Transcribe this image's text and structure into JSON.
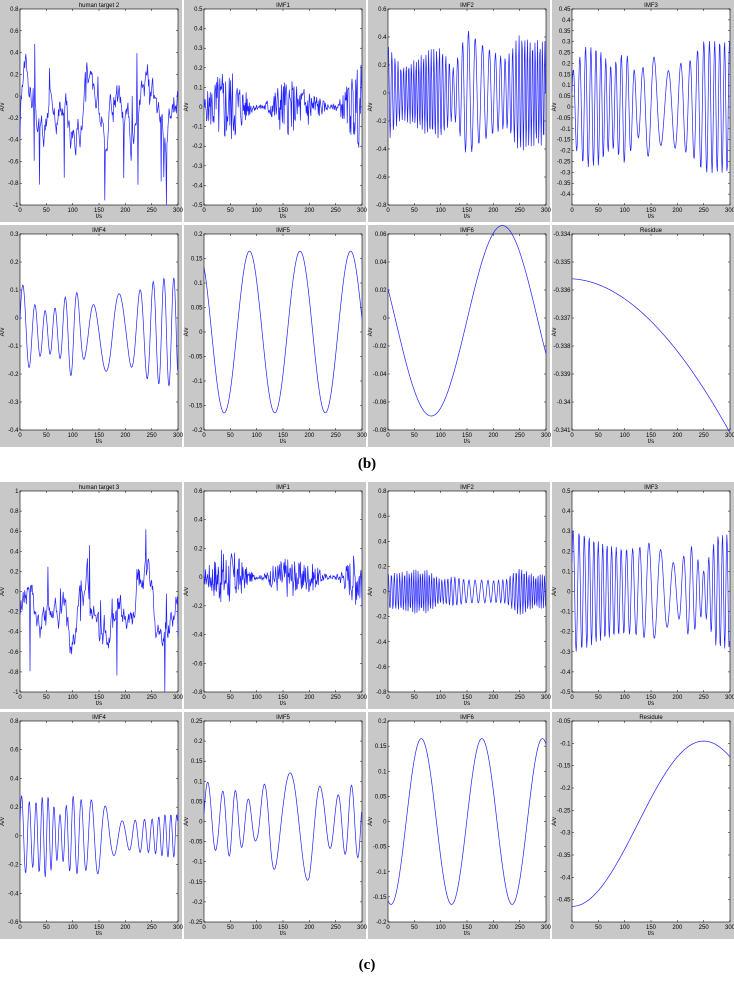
{
  "captions": [
    "(b)",
    "(c)"
  ],
  "figures": [
    {
      "name": "figure-b",
      "panels": [
        {
          "title": "human target 2",
          "ylabel": "A/v",
          "xlabel": "t/s",
          "ylim": [
            -1,
            0.8
          ],
          "yticks": [
            -1,
            -0.8,
            -0.6,
            -0.4,
            -0.2,
            0,
            0.2,
            0.4,
            0.6,
            0.8
          ],
          "yticklabels": [
            "-1",
            "-0.8",
            "-0.6",
            "-0.4",
            "-0.2",
            "0",
            "0.2",
            "0.4",
            "0.6",
            "0.8"
          ],
          "xticks": [
            0,
            50,
            100,
            150,
            200,
            250,
            300
          ],
          "kind": "sparse",
          "seed": 3,
          "amp": 0.7,
          "off": -0.15
        },
        {
          "title": "IMF1",
          "ylabel": "A/v",
          "xlabel": "t/s",
          "ylim": [
            -0.5,
            0.5
          ],
          "yticks": [
            -0.5,
            -0.4,
            -0.3,
            -0.2,
            -0.1,
            0,
            0.1,
            0.2,
            0.3,
            0.4,
            0.5
          ],
          "yticklabels": [
            "-0.5",
            "-0.4",
            "-0.3",
            "-0.2",
            "-0.1",
            "0",
            "0.1",
            "0.2",
            "0.3",
            "0.4",
            "0.5"
          ],
          "xticks": [
            0,
            50,
            100,
            150,
            200,
            250,
            300
          ],
          "kind": "noise",
          "seed": 5,
          "amp": 0.25,
          "off": 0
        },
        {
          "title": "IMF2",
          "ylabel": "A/v",
          "xlabel": "t/s",
          "ylim": [
            -0.8,
            0.6
          ],
          "yticks": [
            -0.8,
            -0.6,
            -0.4,
            -0.2,
            0,
            0.2,
            0.4,
            0.6
          ],
          "yticklabels": [
            "-0.8",
            "-0.6",
            "-0.4",
            "-0.2",
            "0",
            "0.2",
            "0.4",
            "0.6"
          ],
          "xticks": [
            0,
            50,
            100,
            150,
            200,
            250,
            300
          ],
          "kind": "osc",
          "seed": 7,
          "amp": 0.5,
          "freq": 0.18,
          "off": 0
        },
        {
          "title": "IMF3",
          "ylabel": "A/v",
          "xlabel": "t/s",
          "ylim": [
            -0.45,
            0.45
          ],
          "yticks": [
            -0.4,
            -0.35,
            -0.3,
            -0.25,
            -0.2,
            -0.15,
            -0.1,
            -0.05,
            0,
            0.05,
            0.1,
            0.15,
            0.2,
            0.25,
            0.3,
            0.35,
            0.4,
            0.45
          ],
          "yticklabels": [
            "-0.4",
            "-0.35",
            "-0.3",
            "-0.25",
            "-0.2",
            "-0.15",
            "-0.1",
            "-0.05",
            "0",
            "0.05",
            "0.1",
            "0.15",
            "0.2",
            "0.25",
            "0.3",
            "0.35",
            "0.4",
            "0.45"
          ],
          "xticks": [
            0,
            50,
            100,
            150,
            200,
            250,
            300
          ],
          "kind": "osc",
          "seed": 9,
          "amp": 0.35,
          "freq": 0.09,
          "off": 0
        },
        {
          "title": "IMF4",
          "ylabel": "A/v",
          "xlabel": "t/s",
          "ylim": [
            -0.4,
            0.3
          ],
          "yticks": [
            -0.4,
            -0.3,
            -0.2,
            -0.1,
            0,
            0.1,
            0.2,
            0.3
          ],
          "yticklabels": [
            "-0.4",
            "-0.3",
            "-0.2",
            "-0.1",
            "0",
            "0.1",
            "0.2",
            "0.3"
          ],
          "xticks": [
            0,
            50,
            100,
            150,
            200,
            250,
            300
          ],
          "kind": "osc",
          "seed": 11,
          "amp": 0.2,
          "freq": 0.045,
          "off": -0.05
        },
        {
          "title": "IMF5",
          "ylabel": "A/v",
          "xlabel": "t/s",
          "ylim": [
            -0.2,
            0.2
          ],
          "yticks": [
            -0.2,
            -0.15,
            -0.1,
            -0.05,
            0,
            0.05,
            0.1,
            0.15,
            0.2
          ],
          "yticklabels": [
            "-0.2",
            "-0.15",
            "-0.1",
            "-0.05",
            "0",
            "0.05",
            "0.1",
            "0.15",
            "0.2"
          ],
          "xticks": [
            0,
            50,
            100,
            150,
            200,
            250,
            300
          ],
          "kind": "sine",
          "amp": 0.165,
          "period": 96,
          "phase": 2.2,
          "off": 0
        },
        {
          "title": "IMF6",
          "ylabel": "A/v",
          "xlabel": "t/s",
          "ylim": [
            -0.08,
            0.06
          ],
          "yticks": [
            -0.08,
            -0.06,
            -0.04,
            -0.02,
            0,
            0.02,
            0.04,
            0.06
          ],
          "yticklabels": [
            "-0.08",
            "-0.06",
            "-0.04",
            "-0.02",
            "0",
            "0.02",
            "0.04",
            "0.06"
          ],
          "xticks": [
            0,
            50,
            100,
            150,
            200,
            250,
            300
          ],
          "kind": "sine",
          "amp": 0.068,
          "period": 270,
          "phase": 2.8,
          "off": -0.002
        },
        {
          "title": "Residue",
          "ylabel": "A/v",
          "xlabel": "t/s",
          "ylim": [
            -0.341,
            -0.334
          ],
          "yticks": [
            -0.341,
            -0.34,
            -0.339,
            -0.338,
            -0.337,
            -0.336,
            -0.335,
            -0.334
          ],
          "yticklabels": [
            "-0.341",
            "-0.34",
            "-0.339",
            "-0.338",
            "-0.337",
            "-0.336",
            "-0.335",
            "-0.334"
          ],
          "xticks": [
            0,
            50,
            100,
            150,
            200,
            250,
            300
          ],
          "kind": "residue_b"
        }
      ]
    },
    {
      "name": "figure-c",
      "panels": [
        {
          "title": "human target 3",
          "ylabel": "A/v",
          "xlabel": "t/s",
          "ylim": [
            -1,
            1
          ],
          "yticks": [
            -1,
            -0.8,
            -0.6,
            -0.4,
            -0.2,
            0,
            0.2,
            0.4,
            0.6,
            0.8,
            1
          ],
          "yticklabels": [
            "-1",
            "-0.8",
            "-0.6",
            "-0.4",
            "-0.2",
            "0",
            "0.2",
            "0.4",
            "0.6",
            "0.8",
            "1"
          ],
          "xticks": [
            0,
            50,
            100,
            150,
            200,
            250,
            300
          ],
          "kind": "sparse",
          "seed": 13,
          "amp": 0.8,
          "off": -0.25
        },
        {
          "title": "IMF1",
          "ylabel": "A/v",
          "xlabel": "t/s",
          "ylim": [
            -0.8,
            0.6
          ],
          "yticks": [
            -0.8,
            -0.6,
            -0.4,
            -0.2,
            0,
            0.2,
            0.4,
            0.6
          ],
          "yticklabels": [
            "-0.8",
            "-0.6",
            "-0.4",
            "-0.2",
            "0",
            "0.2",
            "0.4",
            "0.6"
          ],
          "xticks": [
            0,
            50,
            100,
            150,
            200,
            250,
            300
          ],
          "kind": "noise",
          "seed": 17,
          "amp": 0.25,
          "off": 0
        },
        {
          "title": "IMF2",
          "ylabel": "A/v",
          "xlabel": "t/s",
          "ylim": [
            -0.8,
            0.8
          ],
          "yticks": [
            -0.8,
            -0.6,
            -0.4,
            -0.2,
            0,
            0.2,
            0.4,
            0.6,
            0.8
          ],
          "yticklabels": [
            "-0.8",
            "-0.6",
            "-0.4",
            "-0.2",
            "0",
            "0.2",
            "0.4",
            "0.6",
            "0.8"
          ],
          "xticks": [
            0,
            50,
            100,
            150,
            200,
            250,
            300
          ],
          "kind": "osc",
          "seed": 19,
          "amp": 0.2,
          "freq": 0.2,
          "off": 0
        },
        {
          "title": "IMF3",
          "ylabel": "A/v",
          "xlabel": "t/s",
          "ylim": [
            -0.5,
            0.5
          ],
          "yticks": [
            -0.5,
            -0.4,
            -0.3,
            -0.2,
            -0.1,
            0,
            0.1,
            0.2,
            0.3,
            0.4,
            0.5
          ],
          "yticklabels": [
            "-0.5",
            "-0.4",
            "-0.3",
            "-0.2",
            "-0.1",
            "0",
            "0.1",
            "0.2",
            "0.3",
            "0.4",
            "0.5"
          ],
          "xticks": [
            0,
            50,
            100,
            150,
            200,
            250,
            300
          ],
          "kind": "osc",
          "seed": 23,
          "amp": 0.32,
          "freq": 0.1,
          "off": 0
        },
        {
          "title": "IMF4",
          "ylabel": "A/v",
          "xlabel": "t/s",
          "ylim": [
            -0.6,
            0.8
          ],
          "yticks": [
            -0.6,
            -0.4,
            -0.2,
            0,
            0.2,
            0.4,
            0.6,
            0.8
          ],
          "yticklabels": [
            "-0.6",
            "-0.4",
            "-0.2",
            "0",
            "0.2",
            "0.4",
            "0.6",
            "0.8"
          ],
          "xticks": [
            0,
            50,
            100,
            150,
            200,
            250,
            300
          ],
          "kind": "osc",
          "seed": 29,
          "amp": 0.3,
          "freq": 0.075,
          "off": 0
        },
        {
          "title": "IMF5",
          "ylabel": "A/v",
          "xlabel": "t/s",
          "ylim": [
            -0.25,
            0.25
          ],
          "yticks": [
            -0.25,
            -0.2,
            -0.15,
            -0.1,
            -0.05,
            0,
            0.05,
            0.1,
            0.15,
            0.2,
            0.25
          ],
          "yticklabels": [
            "-0.25",
            "-0.2",
            "-0.15",
            "-0.1",
            "-0.05",
            "0",
            "0.05",
            "0.1",
            "0.15",
            "0.2",
            "0.25"
          ],
          "xticks": [
            0,
            50,
            100,
            150,
            200,
            250,
            300
          ],
          "kind": "osc",
          "seed": 31,
          "amp": 0.15,
          "freq": 0.035,
          "off": 0
        },
        {
          "title": "IMF6",
          "ylabel": "A/v",
          "xlabel": "t/s",
          "ylim": [
            -0.2,
            0.2
          ],
          "yticks": [
            -0.2,
            -0.15,
            -0.1,
            -0.05,
            0,
            0.05,
            0.1,
            0.15,
            0.2
          ],
          "yticklabels": [
            "-0.2",
            "-0.15",
            "-0.1",
            "-0.05",
            "0",
            "0.05",
            "0.1",
            "0.15",
            "0.2"
          ],
          "xticks": [
            0,
            50,
            100,
            150,
            200,
            250,
            300
          ],
          "kind": "sine",
          "amp": 0.165,
          "period": 115,
          "phase": 4.4,
          "off": 0
        },
        {
          "title": "Residule",
          "ylabel": "A/v",
          "xlabel": "t/s",
          "ylim": [
            -0.5,
            -0.05
          ],
          "yticks": [
            -0.45,
            -0.4,
            -0.35,
            -0.3,
            -0.25,
            -0.2,
            -0.15,
            -0.1,
            -0.05
          ],
          "yticklabels": [
            "-0.45",
            "-0.4",
            "-0.35",
            "-0.3",
            "-0.25",
            "-0.2",
            "-0.15",
            "-0.1",
            "-0.05"
          ],
          "xticks": [
            0,
            50,
            100,
            150,
            200,
            250,
            300
          ],
          "kind": "residue_c"
        }
      ]
    }
  ]
}
